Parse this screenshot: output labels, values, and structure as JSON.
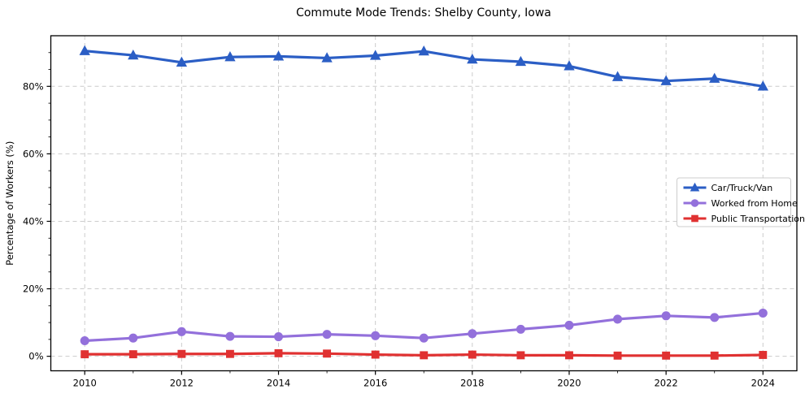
{
  "figure": {
    "background": "#ffffff"
  },
  "chart_data": {
    "type": "line",
    "title": "Commute Mode Trends: Shelby County, Iowa",
    "xlabel": "",
    "ylabel": "Percentage of Workers (%)",
    "x": [
      2010,
      2011,
      2012,
      2013,
      2014,
      2015,
      2016,
      2017,
      2018,
      2019,
      2020,
      2021,
      2022,
      2023,
      2024
    ],
    "series": [
      {
        "name": "Car/Truck/Van",
        "marker": "triangle",
        "color": "#2b5ec5",
        "values": [
          90.5,
          89.2,
          87.1,
          88.7,
          88.9,
          88.4,
          89.1,
          90.4,
          88.0,
          87.3,
          86.0,
          82.8,
          81.6,
          82.3,
          80.0
        ]
      },
      {
        "name": "Worked from Home",
        "marker": "circle",
        "color": "#9370db",
        "values": [
          4.6,
          5.4,
          7.3,
          5.9,
          5.8,
          6.5,
          6.1,
          5.4,
          6.7,
          8.0,
          9.2,
          11.0,
          12.0,
          11.5,
          12.8
        ]
      },
      {
        "name": "Public Transportation",
        "marker": "square",
        "color": "#e03131",
        "values": [
          0.6,
          0.6,
          0.7,
          0.7,
          0.9,
          0.8,
          0.5,
          0.3,
          0.5,
          0.3,
          0.3,
          0.2,
          0.2,
          0.2,
          0.4
        ]
      }
    ],
    "xticks": [
      2010,
      2012,
      2014,
      2016,
      2018,
      2020,
      2022,
      2024
    ],
    "yticks": [
      0,
      20,
      40,
      60,
      80
    ],
    "ytick_suffix": "%",
    "xlim": [
      2009.3,
      2024.7
    ],
    "ylim": [
      -4.3,
      95.0
    ],
    "grid": true,
    "grid_style": "dashed",
    "grid_color": "#cccccc",
    "spine_color": "#000000",
    "legend_position": "center-right",
    "legend_labels": [
      "Car/Truck/Van",
      "Worked from Home",
      "Public Transportation"
    ]
  }
}
